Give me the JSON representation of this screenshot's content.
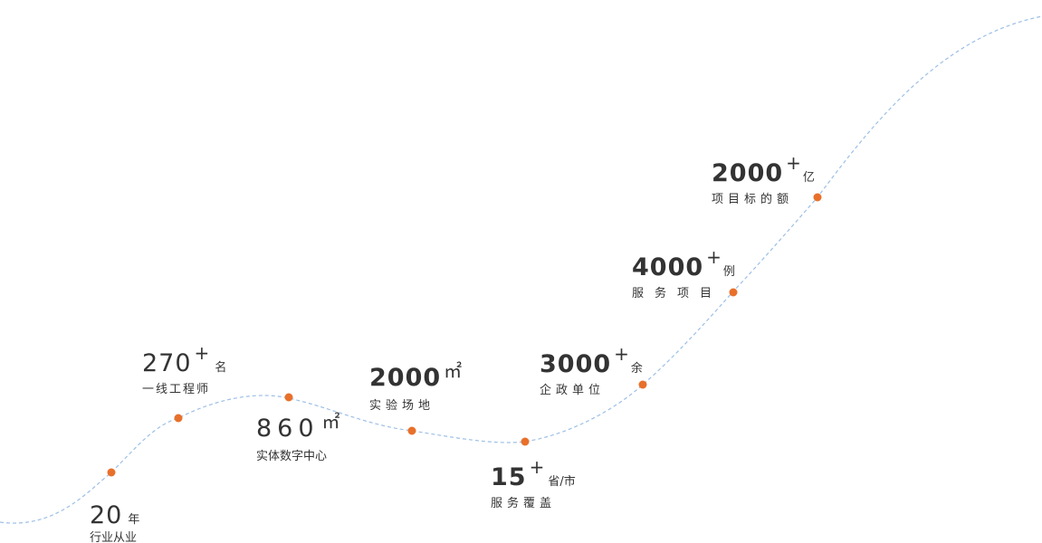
{
  "colors": {
    "curve": "#9dbfe6",
    "dot": "#e8702a",
    "text": "#333333"
  },
  "milestones": [
    {
      "number": "20",
      "suffix": "",
      "unit": "年",
      "label": "行业从业"
    },
    {
      "number": "270",
      "suffix": "+",
      "unit": "名",
      "label": "一线工程师"
    },
    {
      "number": "860",
      "suffix": "㎡",
      "unit": "",
      "label": "实体数字中心"
    },
    {
      "number": "2000",
      "suffix": "㎡",
      "unit": "",
      "label": "实验场地"
    },
    {
      "number": "15",
      "suffix": "+",
      "unit": "省/市",
      "label": "服务覆盖"
    },
    {
      "number": "3000",
      "suffix": "+",
      "unit": "余",
      "label": "企政单位"
    },
    {
      "number": "4000",
      "suffix": "+",
      "unit": "例",
      "label": "服务项目"
    },
    {
      "number": "2000",
      "suffix": "+",
      "unit": "亿",
      "label": "项目标的额"
    }
  ]
}
